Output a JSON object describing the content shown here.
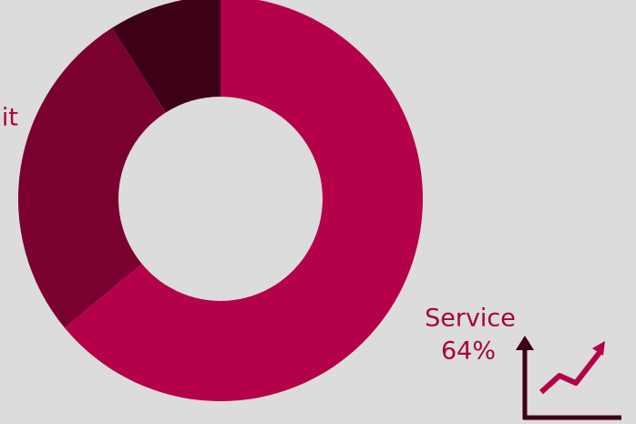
{
  "chart_data": {
    "type": "donut",
    "categories": [
      "Service",
      "it",
      null
    ],
    "values": [
      64,
      27,
      9
    ],
    "value_labels": [
      "64%",
      null,
      null
    ],
    "colors": [
      "#b5004a",
      "#7a0030",
      "#3d0014"
    ]
  }
}
